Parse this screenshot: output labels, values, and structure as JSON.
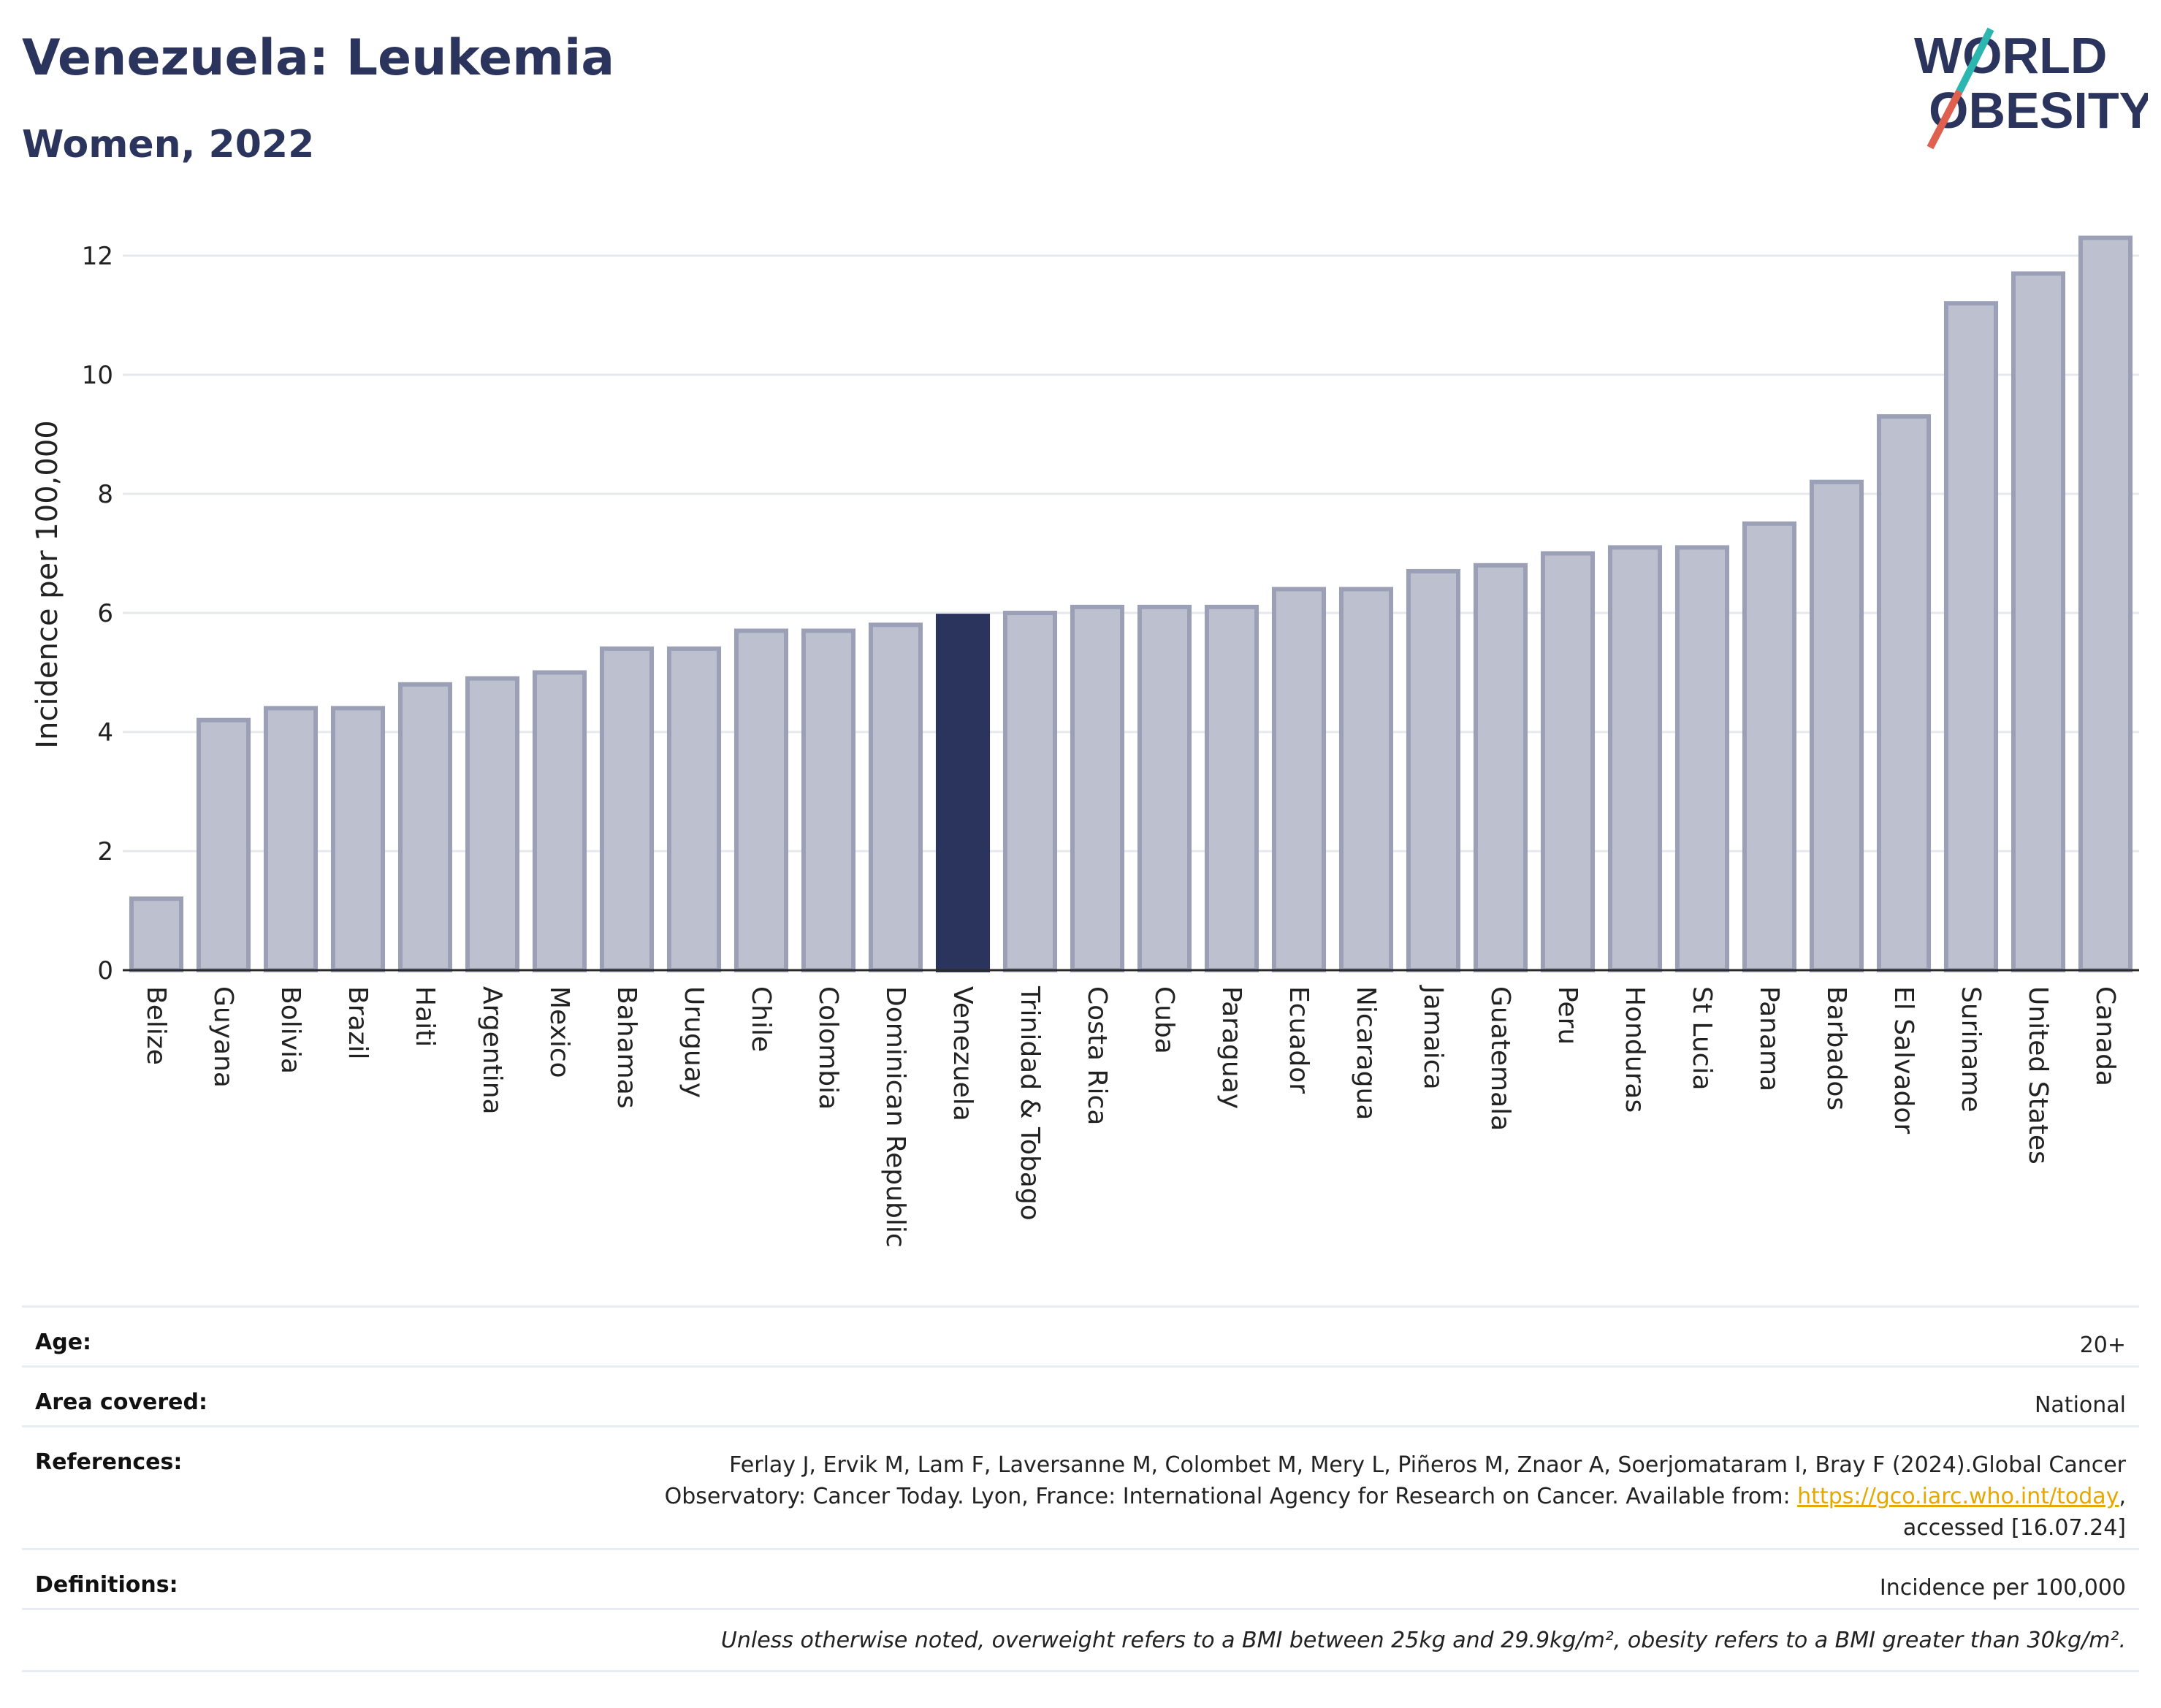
{
  "header": {
    "title": "Venezuela: Leukemia",
    "subtitle": "Women, 2022"
  },
  "logo": {
    "line1": "WORLD",
    "line2": "OBESITY",
    "colors": {
      "text": "#2b345d",
      "slash_teal": "#2bb6b0",
      "slash_red": "#e0604f"
    }
  },
  "chart_data": {
    "type": "bar",
    "title": "",
    "ylabel": "Incidence per 100,000",
    "xlabel": "",
    "ylim": [
      0,
      12.4
    ],
    "yticks": [
      0,
      2,
      4,
      6,
      8,
      10,
      12
    ],
    "grid": true,
    "highlight": "Venezuela",
    "colors": {
      "bar": "#bcc0cf",
      "bar_border": "#9ba0b6",
      "highlight": "#2b345d"
    },
    "categories": [
      "Belize",
      "Guyana",
      "Bolivia",
      "Brazil",
      "Haiti",
      "Argentina",
      "Mexico",
      "Bahamas",
      "Uruguay",
      "Chile",
      "Colombia",
      "Dominican Republic",
      "Venezuela",
      "Trinidad & Tobago",
      "Costa Rica",
      "Cuba",
      "Paraguay",
      "Ecuador",
      "Nicaragua",
      "Jamaica",
      "Guatemala",
      "Peru",
      "Honduras",
      "St Lucia",
      "Panama",
      "Barbados",
      "El Salvador",
      "Suriname",
      "United States",
      "Canada"
    ],
    "values": [
      1.2,
      4.2,
      4.4,
      4.4,
      4.8,
      4.9,
      5.0,
      5.4,
      5.4,
      5.7,
      5.7,
      5.8,
      5.95,
      6.0,
      6.1,
      6.1,
      6.1,
      6.4,
      6.4,
      6.7,
      6.8,
      7.0,
      7.1,
      7.1,
      7.5,
      8.2,
      9.3,
      11.2,
      11.7,
      12.3
    ]
  },
  "meta": {
    "age_label": "Age:",
    "age_value": "20+",
    "area_label": "Area covered:",
    "area_value": "National",
    "references_label": "References:",
    "references_line1": "Ferlay J, Ervik M, Lam F, Laversanne M, Colombet M, Mery L, Piñeros M, Znaor A, Soerjomataram I, Bray F (2024).Global Cancer",
    "references_line2_pre": "Observatory: Cancer Today. Lyon, France: International Agency for Research on Cancer. Available from: ",
    "references_link": "https://gco.iarc.who.int/today",
    "references_line2_post": ",",
    "references_line3": "accessed [16.07.24]",
    "definitions_label": "Definitions:",
    "definitions_value": "Incidence per 100,000",
    "footnote": "Unless otherwise noted, overweight refers to a BMI between 25kg and 29.9kg/m², obesity refers to a BMI greater than 30kg/m²."
  }
}
